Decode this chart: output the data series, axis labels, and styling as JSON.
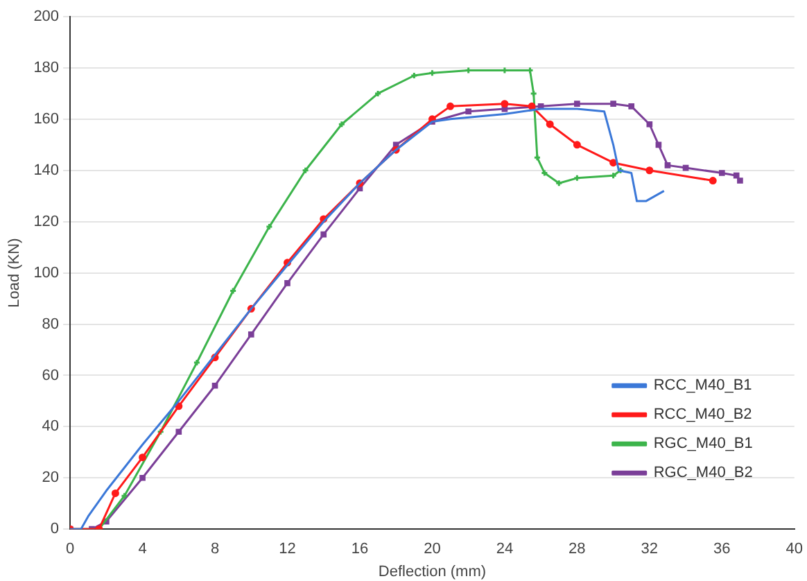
{
  "chart_data": {
    "type": "line",
    "xlabel": "Deflection (mm)",
    "ylabel": "Load (KN)",
    "xlim": [
      0,
      40
    ],
    "xticks": [
      0,
      4,
      8,
      12,
      16,
      20,
      24,
      28,
      32,
      36,
      40
    ],
    "ylim": [
      0,
      200
    ],
    "yticks": [
      0,
      20,
      40,
      60,
      80,
      100,
      120,
      140,
      160,
      180,
      200
    ],
    "grid": "y",
    "legend": "bottom right",
    "line_style": "solid",
    "series": [
      {
        "name": "RCC_M40_B1",
        "color": "#3b78d8",
        "marker": "none",
        "x": [
          0,
          0.6,
          1,
          2,
          4,
          6,
          8,
          10,
          12,
          14,
          16,
          18,
          20,
          21,
          24,
          26,
          28,
          29.5,
          30,
          30.3,
          31,
          31.3,
          31.8,
          32.8
        ],
        "values": [
          0,
          0,
          5,
          15,
          33,
          50,
          68,
          86,
          103,
          120,
          135,
          148,
          159,
          160,
          162,
          164,
          164,
          163,
          150,
          140,
          139,
          128,
          128,
          132
        ]
      },
      {
        "name": "RCC_M40_B2",
        "color": "#ff1a1a",
        "marker": "circle",
        "x": [
          0,
          1.6,
          2.5,
          4,
          6,
          8,
          10,
          12,
          14,
          16,
          18,
          20,
          21,
          24,
          25.5,
          26.5,
          28,
          30,
          32,
          35.5
        ],
        "values": [
          0,
          0,
          14,
          28,
          48,
          67,
          86,
          104,
          121,
          135,
          148,
          160,
          165,
          166,
          165,
          158,
          150,
          143,
          140,
          136
        ]
      },
      {
        "name": "RGC_M40_B1",
        "color": "#3cb44b",
        "marker": "cross",
        "x": [
          0,
          1.6,
          3,
          5,
          7,
          9,
          11,
          13,
          15,
          17,
          19,
          20,
          22,
          24,
          25.4,
          25.6,
          25.8,
          26.2,
          27,
          28,
          30,
          30.4
        ],
        "values": [
          0,
          0,
          13,
          38,
          65,
          93,
          118,
          140,
          158,
          170,
          177,
          178,
          179,
          179,
          179,
          170,
          145,
          139,
          135,
          137,
          138,
          140
        ]
      },
      {
        "name": "RGC_M40_B2",
        "color": "#7b3f98",
        "marker": "square",
        "x": [
          0,
          1.2,
          2,
          4,
          6,
          8,
          10,
          12,
          14,
          16,
          18,
          20,
          22,
          24,
          26,
          28,
          30,
          31,
          32,
          32.5,
          33,
          34,
          36,
          36.8,
          37
        ],
        "values": [
          0,
          0,
          3,
          20,
          38,
          56,
          76,
          96,
          115,
          133,
          150,
          159,
          163,
          164,
          165,
          166,
          166,
          165,
          158,
          150,
          142,
          141,
          139,
          138,
          136
        ]
      }
    ]
  }
}
